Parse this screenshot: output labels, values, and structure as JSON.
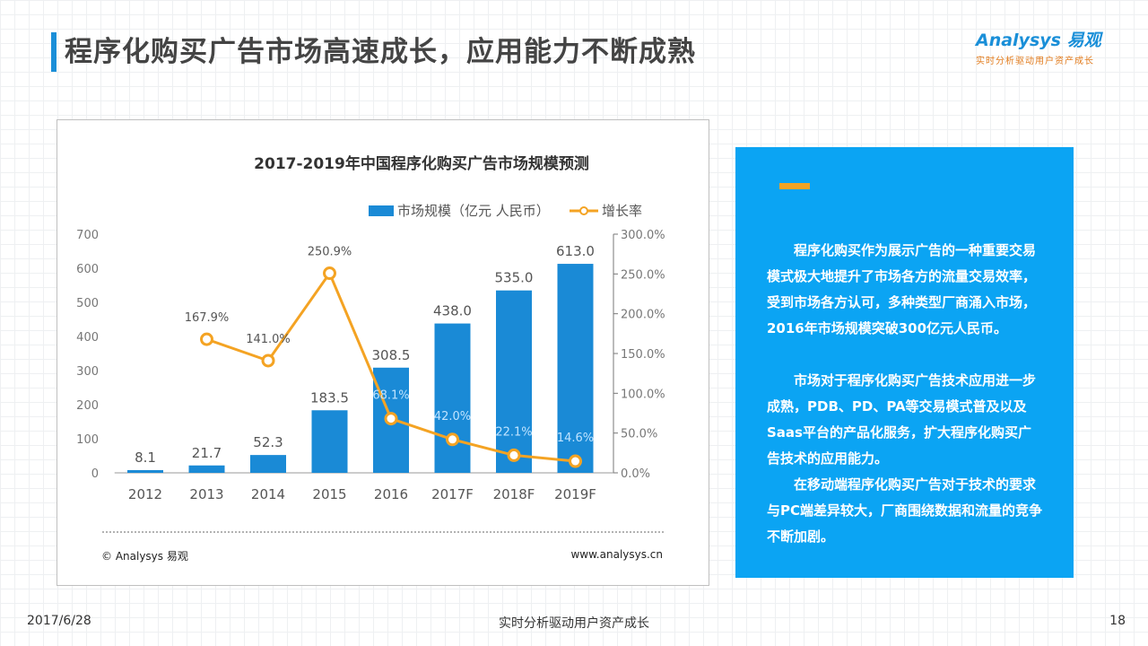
{
  "page": {
    "title": "程序化购买广告市场高速成长，应用能力不断成熟",
    "footer_date": "2017/6/28",
    "footer_center": "实时分析驱动用户资产成长",
    "page_number": "18"
  },
  "logo": {
    "brand": "Analysys 易观",
    "slogan": "实时分析驱动用户资产成长"
  },
  "chart_data": {
    "type": "bar",
    "title": "2017-2019年中国程序化购买广告市场规模预测",
    "categories": [
      "2012",
      "2013",
      "2014",
      "2015",
      "2016",
      "2017F",
      "2018F",
      "2019F"
    ],
    "series": [
      {
        "name": "市场规模（亿元 人民币）",
        "kind": "bar",
        "axis": "left",
        "color": "#1a8ad6",
        "values": [
          8.1,
          21.7,
          52.3,
          183.5,
          308.5,
          438.0,
          535.0,
          613.0
        ],
        "labels": [
          "8.1",
          "21.7",
          "52.3",
          "183.5",
          "308.5",
          "438.0",
          "535.0",
          "613.0"
        ]
      },
      {
        "name": "增长率",
        "kind": "line",
        "axis": "right",
        "color": "#f4a323",
        "values": [
          null,
          167.9,
          141.0,
          250.9,
          68.1,
          42.0,
          22.1,
          14.6
        ],
        "labels": [
          "",
          "167.9%",
          "141.0%",
          "250.9%",
          "68.1%",
          "42.0%",
          "22.1%",
          "14.6%"
        ]
      }
    ],
    "y_left": {
      "min": 0,
      "max": 700,
      "ticks": [
        "0",
        "100",
        "200",
        "300",
        "400",
        "500",
        "600",
        "700"
      ]
    },
    "y_right": {
      "min": 0,
      "max": 300,
      "ticks": [
        "0.0%",
        "50.0%",
        "100.0%",
        "150.0%",
        "200.0%",
        "250.0%",
        "300.0%"
      ]
    },
    "legend_position": "top-right",
    "grid": false,
    "source": "© Analysys 易观",
    "website": "www.analysys.cn"
  },
  "text_panel": {
    "paragraphs": [
      "程序化购买作为展示广告的一种重要交易模式极大地提升了市场各方的流量交易效率，受到市场各方认可，多种类型厂商涌入市场，2016年市场规模突破300亿元人民币。",
      "市场对于程序化购买广告技术应用进一步成熟，PDB、PD、PA等交易模式普及以及Saas平台的产品化服务，扩大程序化购买广告技术的应用能力。",
      "在移动端程序化购买广告对于技术的要求与PC端差异较大，厂商围绕数据和流量的竞争不断加剧。"
    ],
    "accent_color": "#f4a323",
    "background_color": "#0ba4f3"
  }
}
